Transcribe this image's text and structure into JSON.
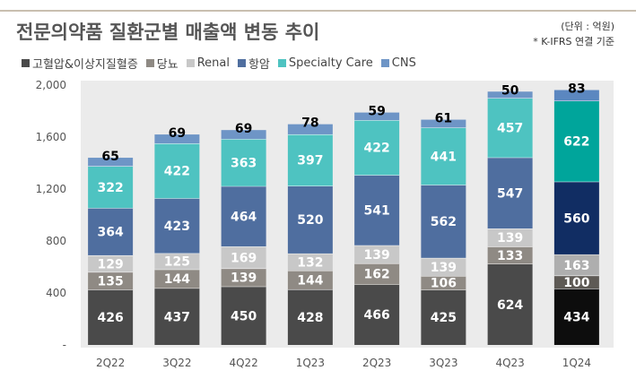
{
  "header": {
    "title": "전문의약품 질환군별 매출액 변동 추이",
    "unit": "(단위 : 억원)",
    "note": "* K-IFRS 연결 기준"
  },
  "colors": {
    "고혈압&이상지질혈증": "#4a4a4a",
    "당뇨": "#8f8a84",
    "Renal": "#c8c8c8",
    "항암": "#4f6e9f",
    "Specialty Care": "#4ec3c1",
    "CNS": "#6e95c6",
    "hl_고혈압&이상지질혈증": "#0d0d0d",
    "hl_당뇨": "#5e5a55",
    "hl_Renal": "#aeaeae",
    "hl_항암": "#112d63",
    "hl_Specialty Care": "#00a59b",
    "hl_CNS": "#5b87c0"
  },
  "chart_data": {
    "type": "bar",
    "stacked": true,
    "title": "전문의약품 질환군별 매출액 변동 추이",
    "categories": [
      "2Q22",
      "3Q22",
      "4Q22",
      "1Q23",
      "2Q23",
      "3Q23",
      "4Q23",
      "1Q24"
    ],
    "highlight_category": "1Q24",
    "series": [
      {
        "name": "고혈압&이상지질혈증",
        "values": [
          426,
          437,
          450,
          428,
          466,
          425,
          624,
          434
        ]
      },
      {
        "name": "당뇨",
        "values": [
          135,
          144,
          139,
          144,
          162,
          106,
          133,
          100
        ]
      },
      {
        "name": "Renal",
        "values": [
          129,
          125,
          169,
          132,
          139,
          139,
          139,
          163
        ]
      },
      {
        "name": "항암",
        "values": [
          364,
          423,
          464,
          520,
          541,
          562,
          547,
          560
        ]
      },
      {
        "name": "Specialty Care",
        "values": [
          322,
          422,
          363,
          397,
          422,
          441,
          457,
          622
        ]
      },
      {
        "name": "CNS",
        "values": [
          65,
          69,
          69,
          78,
          59,
          61,
          50,
          83
        ]
      }
    ],
    "yticks": [
      "2,000",
      "1,600",
      "1,200",
      "800",
      "400",
      "-"
    ],
    "ylim": [
      0,
      2000
    ],
    "legend_position": "top-left"
  }
}
